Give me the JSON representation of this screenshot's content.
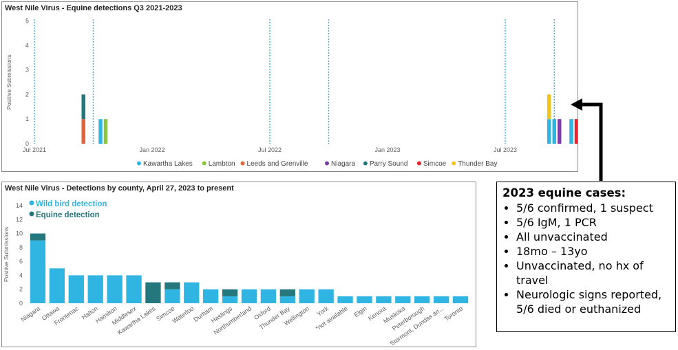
{
  "callout": {
    "title": "2023 equine cases:",
    "bullets": [
      "5/6 confirmed, 1 suspect",
      "5/6 IgM, 1 PCR",
      "All unvaccinated",
      "18mo – 13yo",
      "Unvaccinated, no hx of travel",
      "Neurologic signs reported, 5/6 died or euthanized"
    ]
  },
  "chart_data": [
    {
      "type": "bar",
      "title": "West Nile Virus - Equine detections Q3 2021-2023",
      "ylabel": "Positive Submissions",
      "ylim": [
        0,
        5
      ],
      "yticks": [
        0,
        1,
        2,
        3,
        4,
        5
      ],
      "xticks": [
        "Jul 2021",
        "Jan 2022",
        "Jul 2022",
        "Jan 2023",
        "Jul 2023"
      ],
      "grid": false,
      "legend_position": "bottom",
      "legend": [
        {
          "name": "Kawartha Lakes",
          "color": "#30b5e3"
        },
        {
          "name": "Lambton",
          "color": "#8cc63f"
        },
        {
          "name": "Leeds and Grenville",
          "color": "#e0673a"
        },
        {
          "name": "Niagara",
          "color": "#7b3fa6"
        },
        {
          "name": "Parry Sound",
          "color": "#23777d"
        },
        {
          "name": "Simcoe",
          "color": "#e8212b"
        },
        {
          "name": "Thunder Bay",
          "color": "#f2c418"
        }
      ],
      "bars": [
        {
          "date": "2021-09",
          "segments": [
            {
              "series": "Leeds and Grenville",
              "value": 1
            },
            {
              "series": "Parry Sound",
              "value": 1
            }
          ]
        },
        {
          "date": "2021-10",
          "segments": [
            {
              "series": "Kawartha Lakes",
              "value": 1
            }
          ]
        },
        {
          "date": "2021-10",
          "segments": [
            {
              "series": "Lambton",
              "value": 1
            }
          ]
        },
        {
          "date": "2023-09",
          "segments": [
            {
              "series": "Kawartha Lakes",
              "value": 1
            },
            {
              "series": "Thunder Bay",
              "value": 1
            }
          ]
        },
        {
          "date": "2023-09",
          "segments": [
            {
              "series": "Kawartha Lakes",
              "value": 1
            }
          ]
        },
        {
          "date": "2023-09",
          "segments": [
            {
              "series": "Niagara",
              "value": 1
            }
          ]
        },
        {
          "date": "2023-10",
          "segments": [
            {
              "series": "Kawartha Lakes",
              "value": 1
            }
          ]
        },
        {
          "date": "2023-10",
          "segments": [
            {
              "series": "Simcoe",
              "value": 1
            }
          ]
        }
      ]
    },
    {
      "type": "bar",
      "title": "West Nile Virus - Detections by county, April 27, 2023 to present",
      "ylabel": "Positive Submissions",
      "ylim": [
        0,
        14
      ],
      "yticks": [
        0,
        2,
        4,
        6,
        8,
        10,
        12,
        14
      ],
      "grid": false,
      "legend_position": "top-left",
      "series": [
        {
          "name": "Wild bird detection",
          "color": "#30b5e3",
          "values": [
            9,
            5,
            4,
            4,
            4,
            4,
            0,
            2,
            3,
            2,
            1,
            2,
            2,
            1,
            2,
            2,
            1,
            1,
            1,
            1,
            1,
            1,
            1
          ]
        },
        {
          "name": "Equine detection",
          "color": "#23777d",
          "values": [
            1,
            0,
            0,
            0,
            0,
            0,
            3,
            1,
            0,
            0,
            1,
            0,
            0,
            1,
            0,
            0,
            0,
            0,
            0,
            0,
            0,
            0,
            0
          ]
        }
      ],
      "categories": [
        "Niagara",
        "Ottawa",
        "Frontenac",
        "Halton",
        "Hamilton",
        "Middlesex",
        "Kawartha Lakes",
        "Simcoe",
        "Waterloo",
        "Durham",
        "Hastings",
        "Northumberland",
        "Oxford",
        "Thunder Bay",
        "Wellington",
        "York",
        "*not available",
        "Elgin",
        "Kenora",
        "Muskoka",
        "Peterborough",
        "Stormont, Dundas an...",
        "Toronto"
      ]
    }
  ]
}
